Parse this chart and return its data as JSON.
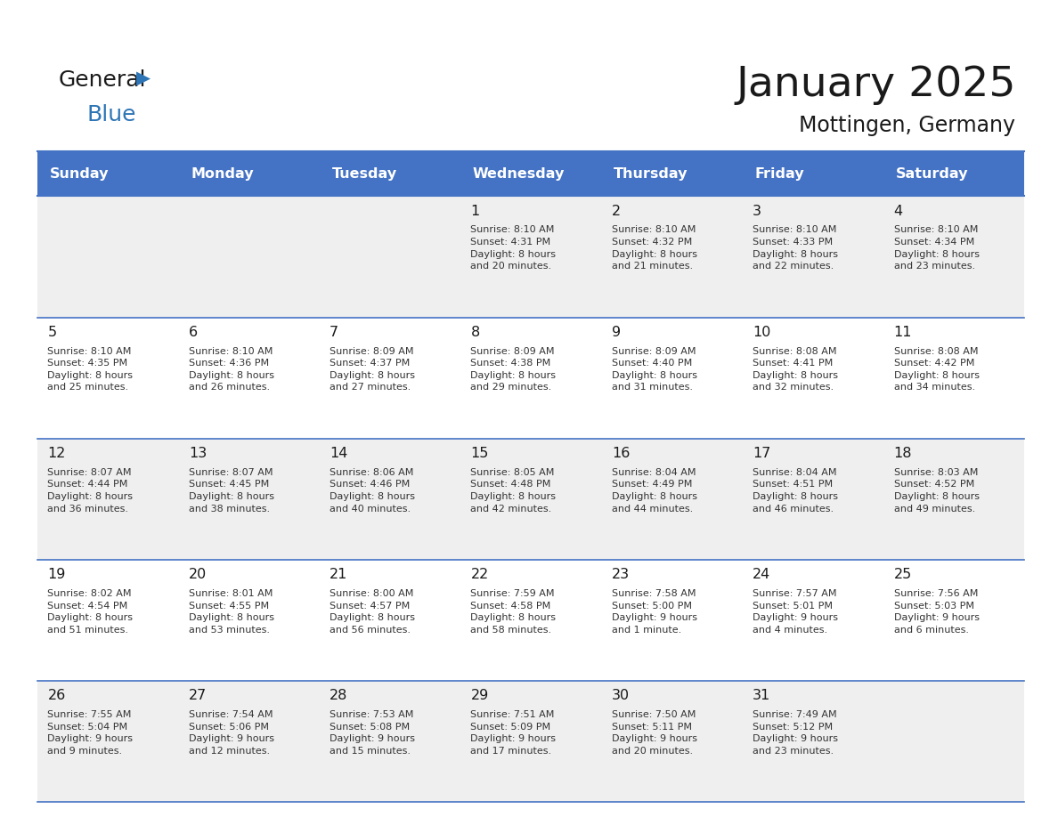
{
  "title": "January 2025",
  "subtitle": "Mottingen, Germany",
  "header_color": "#4472C4",
  "header_text_color": "#FFFFFF",
  "weekdays": [
    "Sunday",
    "Monday",
    "Tuesday",
    "Wednesday",
    "Thursday",
    "Friday",
    "Saturday"
  ],
  "bg_color": "#FFFFFF",
  "cell_bg_even": "#EFEFEF",
  "cell_bg_odd": "#FFFFFF",
  "separator_color": "#4472C4",
  "day_data": {
    "1": {
      "sunrise": "8:10 AM",
      "sunset": "4:31 PM",
      "daylight": "8 hours\nand 20 minutes."
    },
    "2": {
      "sunrise": "8:10 AM",
      "sunset": "4:32 PM",
      "daylight": "8 hours\nand 21 minutes."
    },
    "3": {
      "sunrise": "8:10 AM",
      "sunset": "4:33 PM",
      "daylight": "8 hours\nand 22 minutes."
    },
    "4": {
      "sunrise": "8:10 AM",
      "sunset": "4:34 PM",
      "daylight": "8 hours\nand 23 minutes."
    },
    "5": {
      "sunrise": "8:10 AM",
      "sunset": "4:35 PM",
      "daylight": "8 hours\nand 25 minutes."
    },
    "6": {
      "sunrise": "8:10 AM",
      "sunset": "4:36 PM",
      "daylight": "8 hours\nand 26 minutes."
    },
    "7": {
      "sunrise": "8:09 AM",
      "sunset": "4:37 PM",
      "daylight": "8 hours\nand 27 minutes."
    },
    "8": {
      "sunrise": "8:09 AM",
      "sunset": "4:38 PM",
      "daylight": "8 hours\nand 29 minutes."
    },
    "9": {
      "sunrise": "8:09 AM",
      "sunset": "4:40 PM",
      "daylight": "8 hours\nand 31 minutes."
    },
    "10": {
      "sunrise": "8:08 AM",
      "sunset": "4:41 PM",
      "daylight": "8 hours\nand 32 minutes."
    },
    "11": {
      "sunrise": "8:08 AM",
      "sunset": "4:42 PM",
      "daylight": "8 hours\nand 34 minutes."
    },
    "12": {
      "sunrise": "8:07 AM",
      "sunset": "4:44 PM",
      "daylight": "8 hours\nand 36 minutes."
    },
    "13": {
      "sunrise": "8:07 AM",
      "sunset": "4:45 PM",
      "daylight": "8 hours\nand 38 minutes."
    },
    "14": {
      "sunrise": "8:06 AM",
      "sunset": "4:46 PM",
      "daylight": "8 hours\nand 40 minutes."
    },
    "15": {
      "sunrise": "8:05 AM",
      "sunset": "4:48 PM",
      "daylight": "8 hours\nand 42 minutes."
    },
    "16": {
      "sunrise": "8:04 AM",
      "sunset": "4:49 PM",
      "daylight": "8 hours\nand 44 minutes."
    },
    "17": {
      "sunrise": "8:04 AM",
      "sunset": "4:51 PM",
      "daylight": "8 hours\nand 46 minutes."
    },
    "18": {
      "sunrise": "8:03 AM",
      "sunset": "4:52 PM",
      "daylight": "8 hours\nand 49 minutes."
    },
    "19": {
      "sunrise": "8:02 AM",
      "sunset": "4:54 PM",
      "daylight": "8 hours\nand 51 minutes."
    },
    "20": {
      "sunrise": "8:01 AM",
      "sunset": "4:55 PM",
      "daylight": "8 hours\nand 53 minutes."
    },
    "21": {
      "sunrise": "8:00 AM",
      "sunset": "4:57 PM",
      "daylight": "8 hours\nand 56 minutes."
    },
    "22": {
      "sunrise": "7:59 AM",
      "sunset": "4:58 PM",
      "daylight": "8 hours\nand 58 minutes."
    },
    "23": {
      "sunrise": "7:58 AM",
      "sunset": "5:00 PM",
      "daylight": "9 hours\nand 1 minute."
    },
    "24": {
      "sunrise": "7:57 AM",
      "sunset": "5:01 PM",
      "daylight": "9 hours\nand 4 minutes."
    },
    "25": {
      "sunrise": "7:56 AM",
      "sunset": "5:03 PM",
      "daylight": "9 hours\nand 6 minutes."
    },
    "26": {
      "sunrise": "7:55 AM",
      "sunset": "5:04 PM",
      "daylight": "9 hours\nand 9 minutes."
    },
    "27": {
      "sunrise": "7:54 AM",
      "sunset": "5:06 PM",
      "daylight": "9 hours\nand 12 minutes."
    },
    "28": {
      "sunrise": "7:53 AM",
      "sunset": "5:08 PM",
      "daylight": "9 hours\nand 15 minutes."
    },
    "29": {
      "sunrise": "7:51 AM",
      "sunset": "5:09 PM",
      "daylight": "9 hours\nand 17 minutes."
    },
    "30": {
      "sunrise": "7:50 AM",
      "sunset": "5:11 PM",
      "daylight": "9 hours\nand 20 minutes."
    },
    "31": {
      "sunrise": "7:49 AM",
      "sunset": "5:12 PM",
      "daylight": "9 hours\nand 23 minutes."
    }
  },
  "weeks": [
    [
      null,
      null,
      null,
      1,
      2,
      3,
      4
    ],
    [
      5,
      6,
      7,
      8,
      9,
      10,
      11
    ],
    [
      12,
      13,
      14,
      15,
      16,
      17,
      18
    ],
    [
      19,
      20,
      21,
      22,
      23,
      24,
      25
    ],
    [
      26,
      27,
      28,
      29,
      30,
      31,
      null
    ]
  ]
}
